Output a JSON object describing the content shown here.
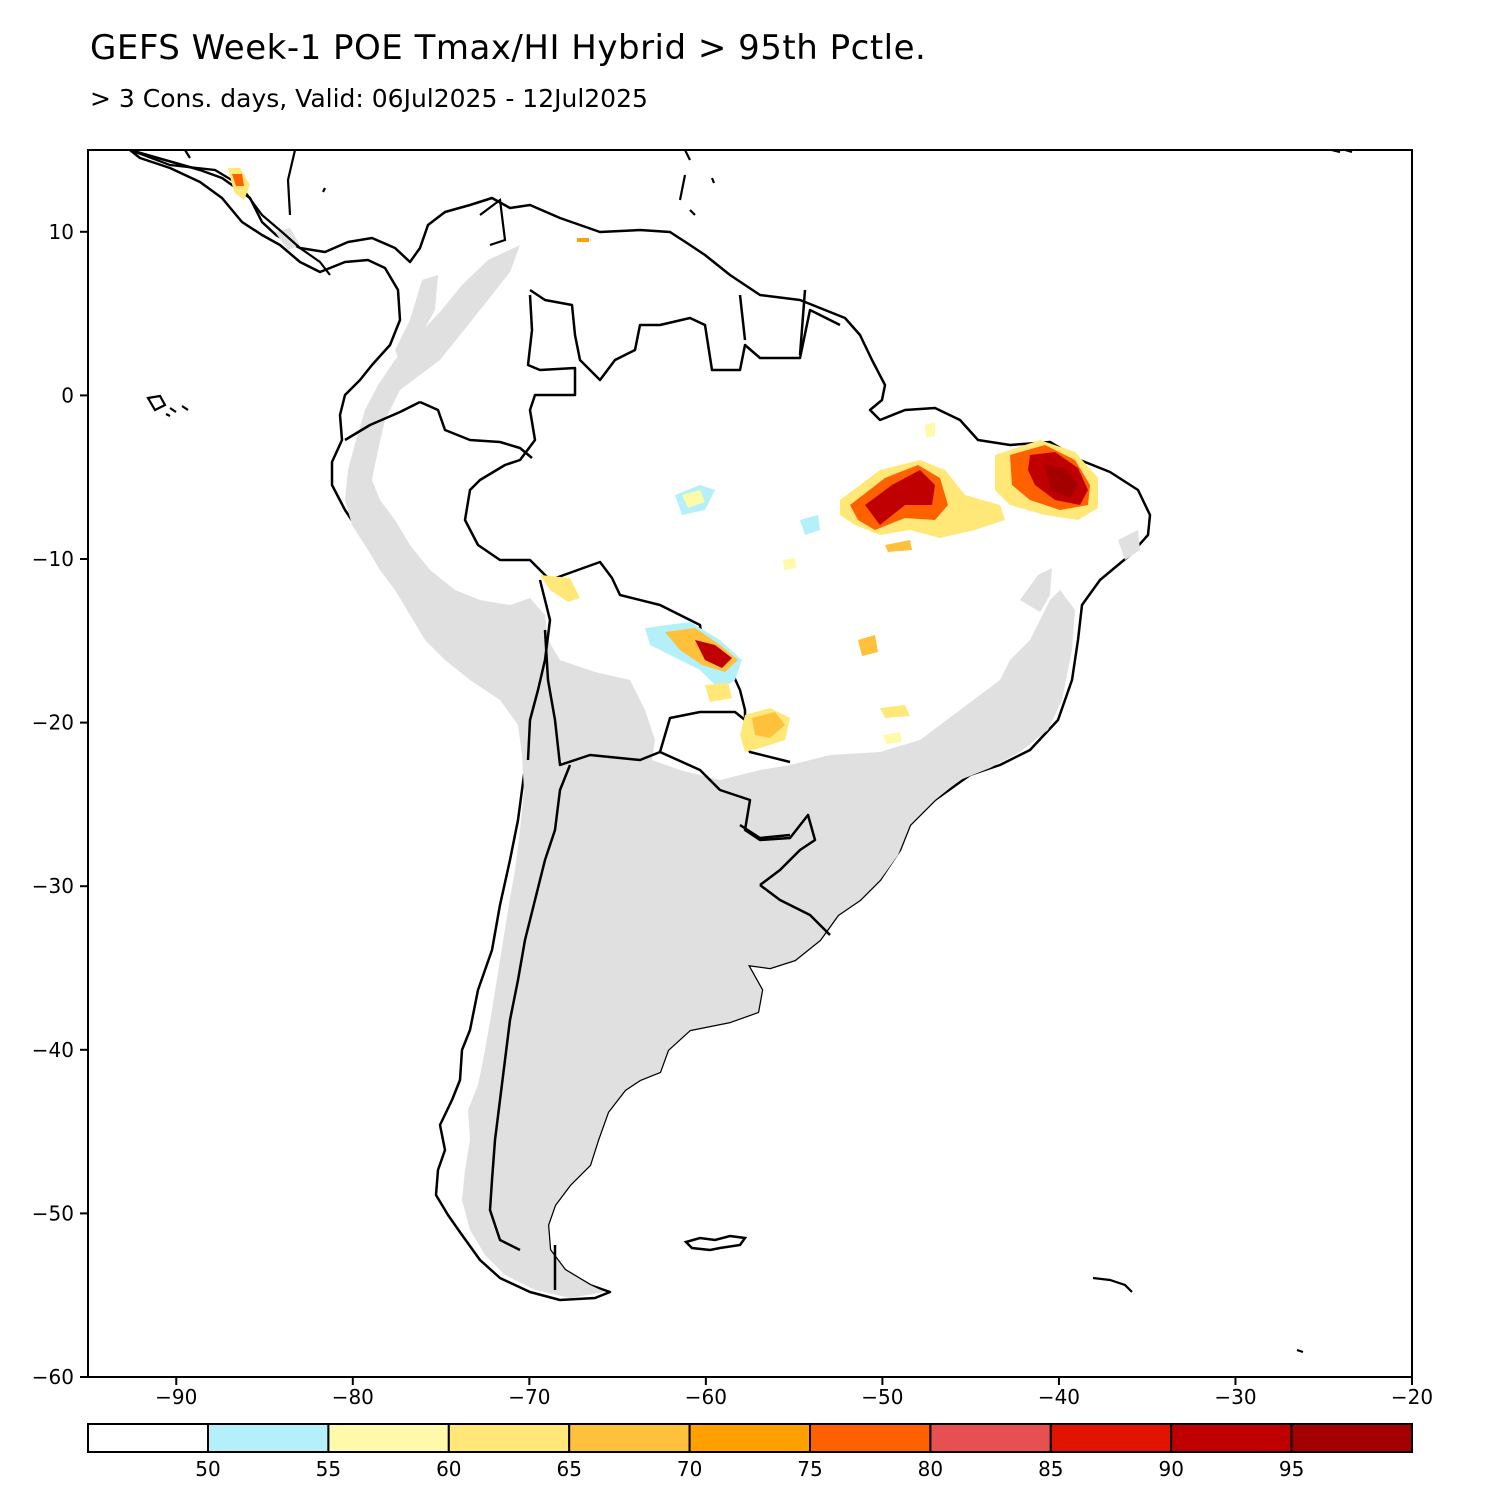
{
  "title": "GEFS Week-1 POE Tmax/HI Hybrid > 95th Pctle.",
  "subtitle": "> 3 Cons. days, Valid: 06Jul2025 - 12Jul2025",
  "map": {
    "lon_range": [
      -95,
      -20
    ],
    "lat_range": [
      -60,
      15
    ],
    "x_ticks": [
      -90,
      -80,
      -70,
      -60,
      -50,
      -40,
      -30,
      -20
    ],
    "y_ticks": [
      10,
      0,
      -10,
      -20,
      -30,
      -40,
      -50,
      -60
    ],
    "land_color": "#e0e0e0",
    "coast_color": "#000000",
    "hotspots": [
      {
        "region": "northeast-brazil",
        "lon": -40,
        "lat": -5,
        "level": 95
      },
      {
        "region": "para",
        "lon": -48,
        "lat": -6,
        "level": 90
      },
      {
        "region": "bolivia-brazil-border",
        "lon": -59.5,
        "lat": -15.5,
        "level": 90
      },
      {
        "region": "central-america",
        "lon": -87,
        "lat": 13,
        "level": 75
      },
      {
        "region": "mato-grosso-do-sul",
        "lon": -56.5,
        "lat": -20.5,
        "level": 65
      }
    ]
  },
  "colorbar": {
    "labels": [
      "50",
      "55",
      "60",
      "65",
      "70",
      "75",
      "80",
      "85",
      "90",
      "95"
    ],
    "colors": [
      "#ffffff",
      "#b4f0fa",
      "#fffaaa",
      "#ffe878",
      "#ffc03c",
      "#ffa000",
      "#ff6000",
      "#e65050",
      "#e11400",
      "#c00000",
      "#a50000"
    ]
  }
}
